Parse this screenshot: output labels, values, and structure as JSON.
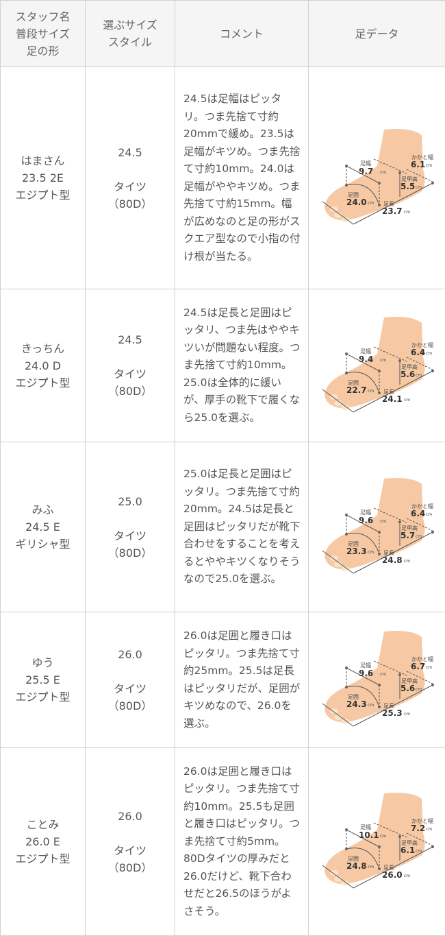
{
  "header": {
    "col1": [
      "スタッフ名",
      "普段サイズ",
      "足の形"
    ],
    "col2": [
      "選ぶサイズ",
      "スタイル"
    ],
    "col3": "コメント",
    "col4": "足データ"
  },
  "labels": {
    "width": "足幅",
    "heel": "かかと幅",
    "instep": "足甲高",
    "girth": "足囲",
    "length": "足長",
    "unit": "cm"
  },
  "rows": [
    {
      "name": "はまさん",
      "size": "23.5 2E",
      "shape": "エジプト型",
      "choice": "24.5",
      "style": "タイツ",
      "den": "（80D）",
      "comment": "24.5は足幅はピッタリ。つま先捨て寸約20mmで緩め。23.5は足幅がキツめ。つま先捨て寸約10mm。24.0は足幅がややキツめ。つま先捨て寸約15mm。幅が広めなのと足の形がスクエア型なので小指の付け根が当たる。",
      "foot": {
        "width": "9.7",
        "heel": "6.1",
        "instep": "5.5",
        "girth": "24.0",
        "length": "23.7"
      }
    },
    {
      "name": "きっちん",
      "size": "24.0 D",
      "shape": "エジプト型",
      "choice": "24.5",
      "style": "タイツ",
      "den": "（80D）",
      "comment": "24.5は足長と足囲はピッタリ、つま先はややキツいが問題ない程度。つま先捨て寸約10mm。25.0は全体的に緩いが、厚手の靴下で履くなら25.0を選ぶ。",
      "foot": {
        "width": "9.4",
        "heel": "6.4",
        "instep": "5.6",
        "girth": "22.7",
        "length": "24.1"
      }
    },
    {
      "name": "みふ",
      "size": "24.5 E",
      "shape": "ギリシャ型",
      "choice": "25.0",
      "style": "タイツ",
      "den": "（80D）",
      "comment": "25.0は足長と足囲はピッタリ。つま先捨て寸約20mm。24.5は足長と足囲はピッタリだが靴下合わせをすることを考えるとややキツくなりそうなので25.0を選ぶ。",
      "foot": {
        "width": "9.6",
        "heel": "6.4",
        "instep": "5.7",
        "girth": "23.3",
        "length": "24.8"
      }
    },
    {
      "name": "ゆう",
      "size": "25.5 E",
      "shape": "エジプト型",
      "choice": "26.0",
      "style": "タイツ",
      "den": "（80D）",
      "comment": "26.0は足囲と履き口はピッタリ。つま先捨て寸約25mm。25.5は足長はピッタリだが、足囲がキツめなので、26.0を選ぶ。",
      "foot": {
        "width": "9.6",
        "heel": "6.7",
        "instep": "5.6",
        "girth": "24.3",
        "length": "25.3"
      }
    },
    {
      "name": "ことみ",
      "size": "26.0 E",
      "shape": "エジプト型",
      "choice": "26.0",
      "style": "タイツ",
      "den": "（80D）",
      "comment": "26.0は足囲と履き口はピッタリ。つま先捨て寸約10mm。25.5も足囲と履き口はピッタリ。つま先捨て寸約5mm。80Dタイツの厚みだと26.0だけど、靴下合わせだと26.5のほうがよさそう。",
      "foot": {
        "width": "10.1",
        "heel": "7.2",
        "instep": "6.1",
        "girth": "24.8",
        "length": "26.0"
      }
    }
  ]
}
